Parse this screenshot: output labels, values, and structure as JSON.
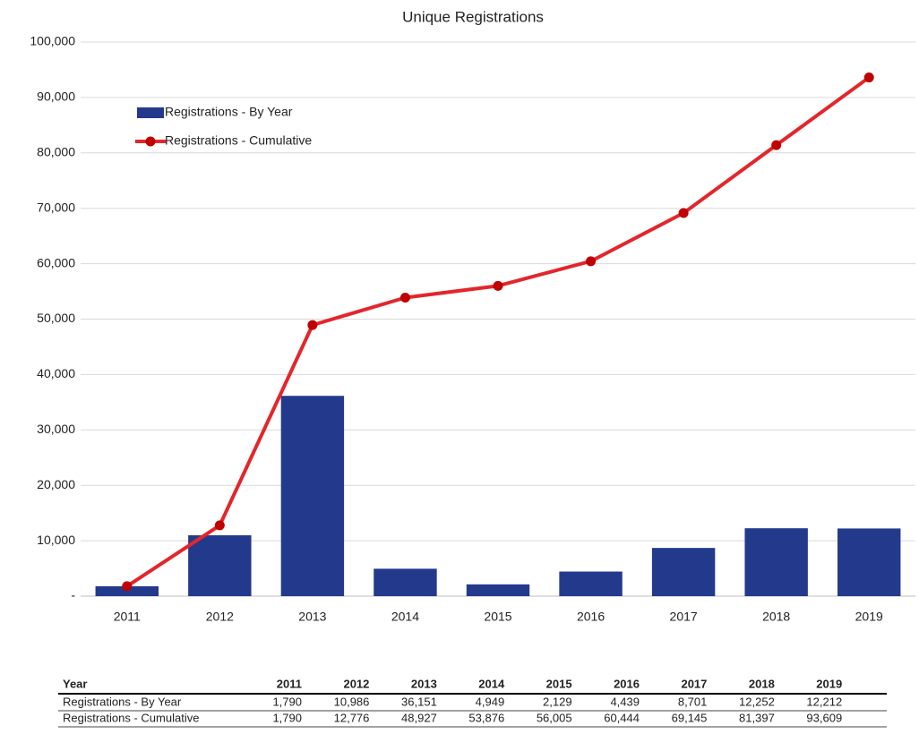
{
  "chart_data": {
    "type": "bar",
    "title": "Unique Registrations",
    "categories": [
      "2011",
      "2012",
      "2013",
      "2014",
      "2015",
      "2016",
      "2017",
      "2018",
      "2019"
    ],
    "series": [
      {
        "name": "Registrations - By Year",
        "type": "bar",
        "color": "#233a8c",
        "values": [
          1790,
          10986,
          36151,
          4949,
          2129,
          4439,
          8701,
          12252,
          12212
        ],
        "value_labels": [
          "1,790",
          "10,986",
          "36,151",
          "4,949",
          "2,129",
          "4,439",
          "8,701",
          "12,252",
          "12,212"
        ]
      },
      {
        "name": "Registrations - Cumulative",
        "type": "line",
        "color": "#e3262b",
        "marker_color": "#c00000",
        "values": [
          1790,
          12776,
          48927,
          53876,
          56005,
          60444,
          69145,
          81397,
          93609
        ],
        "value_labels": [
          "1,790",
          "12,776",
          "48,927",
          "53,876",
          "56,005",
          "60,444",
          "69,145",
          "81,397",
          "93,609"
        ]
      }
    ],
    "ylim": [
      0,
      100000
    ],
    "yticks": [
      {
        "value": 0,
        "label": "-"
      },
      {
        "value": 10000,
        "label": "10,000"
      },
      {
        "value": 20000,
        "label": "20,000"
      },
      {
        "value": 30000,
        "label": "30,000"
      },
      {
        "value": 40000,
        "label": "40,000"
      },
      {
        "value": 50000,
        "label": "50,000"
      },
      {
        "value": 60000,
        "label": "60,000"
      },
      {
        "value": 70000,
        "label": "70,000"
      },
      {
        "value": 80000,
        "label": "80,000"
      },
      {
        "value": 90000,
        "label": "90,000"
      },
      {
        "value": 100000,
        "label": "100,000"
      }
    ],
    "grid": true,
    "legend": "upper left"
  },
  "table": {
    "header": "Year"
  }
}
